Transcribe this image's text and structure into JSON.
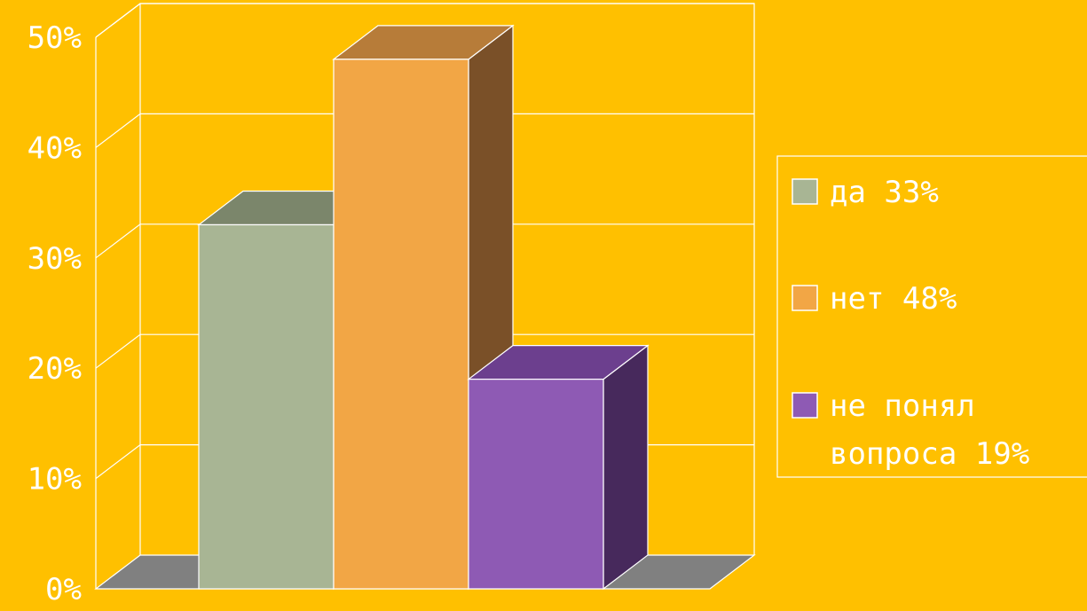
{
  "chart_data": {
    "type": "bar",
    "categories": [
      "да  33%",
      "нет  48%",
      "не  понял вопроса  19%"
    ],
    "values": [
      33,
      48,
      19
    ],
    "value_unit": "%",
    "ylim": [
      0,
      50
    ],
    "yticks": [
      "0%",
      "10%",
      "20%",
      "30%",
      "40%",
      "50%"
    ],
    "grid": true,
    "three_d": true,
    "legend_position": "right",
    "legend": [
      {
        "lines": [
          "да  33%"
        ]
      },
      {
        "lines": [
          "нет  48%"
        ]
      },
      {
        "lines": [
          "не  понял",
          "вопроса  19%"
        ]
      }
    ],
    "title": "",
    "xlabel": "",
    "ylabel": ""
  },
  "colors": {
    "background": "#FFC000",
    "floor": "#808080",
    "series": [
      {
        "front": "#A8B594",
        "top": "#7B866B",
        "side": "#626B55"
      },
      {
        "front": "#F2A645",
        "top": "#B77C39",
        "side": "#7A5028"
      },
      {
        "front": "#8E5AB4",
        "top": "#6C3F8E",
        "side": "#47295C"
      }
    ],
    "lines": "#FFFFFF"
  }
}
